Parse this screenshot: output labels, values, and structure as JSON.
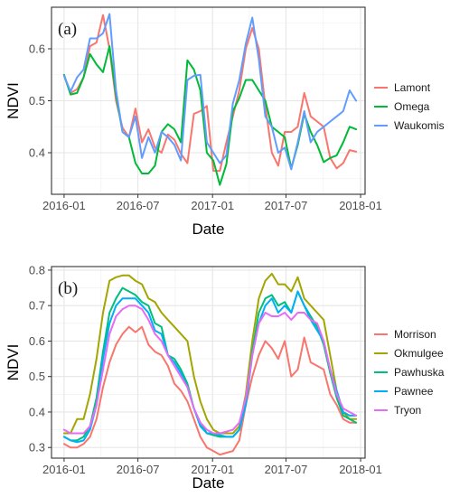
{
  "colors": {
    "panel_border": "#333333",
    "grid_major": "#e6e6e6",
    "grid_minor": "#f2f2f2",
    "background": "#ffffff"
  },
  "chart_data": [
    {
      "type": "line",
      "panel_label": "(a)",
      "xlabel": "Date",
      "ylabel": "NDVI",
      "xlim": [
        "2015-12-01",
        "2018-01-12"
      ],
      "ylim": [
        0.32,
        0.68
      ],
      "grid": true,
      "legend_position": "right",
      "x_ticks": [
        "2016-01",
        "2016-07",
        "2017-01",
        "2017-07",
        "2018-01"
      ],
      "x_tick_dates": [
        "2016-01-01",
        "2016-07-01",
        "2017-01-01",
        "2017-07-01",
        "2018-01-01"
      ],
      "y_ticks": [
        0.4,
        0.5,
        0.6
      ],
      "y_tick_labels": [
        "0.4",
        "0.5",
        "0.6"
      ],
      "x": [
        "2016-01-01",
        "2016-01-17",
        "2016-02-02",
        "2016-02-18",
        "2016-03-05",
        "2016-03-21",
        "2016-04-06",
        "2016-04-22",
        "2016-05-08",
        "2016-05-24",
        "2016-06-09",
        "2016-06-25",
        "2016-07-11",
        "2016-07-27",
        "2016-08-12",
        "2016-08-28",
        "2016-09-13",
        "2016-09-29",
        "2016-10-15",
        "2016-10-31",
        "2016-11-16",
        "2016-12-02",
        "2016-12-18",
        "2017-01-03",
        "2017-01-19",
        "2017-02-04",
        "2017-02-20",
        "2017-03-08",
        "2017-03-24",
        "2017-04-09",
        "2017-04-25",
        "2017-05-11",
        "2017-05-27",
        "2017-06-12",
        "2017-06-28",
        "2017-07-14",
        "2017-07-30",
        "2017-08-15",
        "2017-08-31",
        "2017-09-16",
        "2017-10-02",
        "2017-10-18",
        "2017-11-03",
        "2017-11-19",
        "2017-12-05",
        "2017-12-21"
      ],
      "series": [
        {
          "name": "Lamont",
          "color": "#f8766d",
          "values": [
            0.548,
            0.515,
            0.522,
            0.545,
            0.605,
            0.612,
            0.665,
            0.6,
            0.5,
            0.448,
            0.43,
            0.485,
            0.42,
            0.445,
            0.41,
            0.4,
            0.435,
            0.425,
            0.398,
            0.38,
            0.475,
            0.48,
            0.49,
            0.365,
            0.365,
            0.42,
            0.47,
            0.52,
            0.6,
            0.64,
            0.6,
            0.49,
            0.4,
            0.375,
            0.44,
            0.44,
            0.45,
            0.515,
            0.47,
            0.46,
            0.45,
            0.39,
            0.37,
            0.38,
            0.405,
            0.402
          ]
        },
        {
          "name": "Omega",
          "color": "#00ba38",
          "values": [
            0.55,
            0.512,
            0.515,
            0.545,
            0.59,
            0.57,
            0.555,
            0.605,
            0.51,
            0.44,
            0.43,
            0.38,
            0.36,
            0.36,
            0.375,
            0.44,
            0.455,
            0.445,
            0.42,
            0.578,
            0.56,
            0.52,
            0.4,
            0.385,
            0.338,
            0.378,
            0.48,
            0.505,
            0.54,
            0.54,
            0.52,
            0.5,
            0.45,
            0.44,
            0.43,
            0.37,
            0.415,
            0.475,
            0.44,
            0.415,
            0.382,
            0.39,
            0.395,
            0.42,
            0.45,
            0.445
          ]
        },
        {
          "name": "Waukomis",
          "color": "#619cff",
          "values": [
            0.548,
            0.518,
            0.545,
            0.56,
            0.62,
            0.62,
            0.63,
            0.667,
            0.52,
            0.44,
            0.43,
            0.47,
            0.39,
            0.43,
            0.4,
            0.44,
            0.43,
            0.415,
            0.385,
            0.54,
            0.548,
            0.55,
            0.42,
            0.4,
            0.38,
            0.395,
            0.495,
            0.54,
            0.61,
            0.66,
            0.58,
            0.47,
            0.45,
            0.4,
            0.41,
            0.368,
            0.42,
            0.48,
            0.42,
            0.44,
            0.45,
            0.46,
            0.47,
            0.48,
            0.52,
            0.5
          ]
        }
      ]
    },
    {
      "type": "line",
      "panel_label": "(b)",
      "xlabel": "Date",
      "ylabel": "NDVI",
      "xlim": [
        "2015-12-01",
        "2018-01-12"
      ],
      "ylim": [
        0.27,
        0.81
      ],
      "grid": true,
      "legend_position": "right",
      "x_ticks": [
        "2016-01",
        "2016-07",
        "2017-01",
        "2017-07",
        "2018-01"
      ],
      "x_tick_dates": [
        "2016-01-01",
        "2016-07-01",
        "2017-01-01",
        "2017-07-01",
        "2018-01-01"
      ],
      "y_ticks": [
        0.3,
        0.4,
        0.5,
        0.6,
        0.7,
        0.8
      ],
      "y_tick_labels": [
        "0.3",
        "0.4",
        "0.5",
        "0.6",
        "0.7",
        "0.8"
      ],
      "x": [
        "2016-01-01",
        "2016-01-17",
        "2016-02-02",
        "2016-02-18",
        "2016-03-05",
        "2016-03-21",
        "2016-04-06",
        "2016-04-22",
        "2016-05-08",
        "2016-05-24",
        "2016-06-09",
        "2016-06-25",
        "2016-07-11",
        "2016-07-27",
        "2016-08-12",
        "2016-08-28",
        "2016-09-13",
        "2016-09-29",
        "2016-10-15",
        "2016-10-31",
        "2016-11-16",
        "2016-12-02",
        "2016-12-18",
        "2017-01-03",
        "2017-01-19",
        "2017-02-04",
        "2017-02-20",
        "2017-03-08",
        "2017-03-24",
        "2017-04-09",
        "2017-04-25",
        "2017-05-11",
        "2017-05-27",
        "2017-06-12",
        "2017-06-28",
        "2017-07-14",
        "2017-07-30",
        "2017-08-15",
        "2017-08-31",
        "2017-09-16",
        "2017-10-02",
        "2017-10-18",
        "2017-11-03",
        "2017-11-19",
        "2017-12-05",
        "2017-12-21"
      ],
      "series": [
        {
          "name": "Morrison",
          "color": "#f8766d",
          "values": [
            0.31,
            0.3,
            0.3,
            0.31,
            0.33,
            0.38,
            0.47,
            0.54,
            0.59,
            0.62,
            0.64,
            0.625,
            0.64,
            0.59,
            0.57,
            0.56,
            0.53,
            0.48,
            0.46,
            0.43,
            0.38,
            0.33,
            0.3,
            0.29,
            0.28,
            0.285,
            0.29,
            0.32,
            0.42,
            0.5,
            0.56,
            0.6,
            0.58,
            0.55,
            0.6,
            0.5,
            0.52,
            0.61,
            0.54,
            0.53,
            0.52,
            0.45,
            0.42,
            0.38,
            0.37,
            0.37
          ]
        },
        {
          "name": "Okmulgee",
          "color": "#a3a500",
          "values": [
            0.34,
            0.34,
            0.38,
            0.38,
            0.45,
            0.55,
            0.68,
            0.77,
            0.78,
            0.785,
            0.785,
            0.77,
            0.76,
            0.72,
            0.71,
            0.68,
            0.66,
            0.64,
            0.62,
            0.6,
            0.5,
            0.43,
            0.38,
            0.35,
            0.34,
            0.34,
            0.34,
            0.36,
            0.45,
            0.6,
            0.72,
            0.77,
            0.79,
            0.76,
            0.76,
            0.74,
            0.78,
            0.72,
            0.7,
            0.68,
            0.66,
            0.56,
            0.46,
            0.4,
            0.38,
            0.38
          ]
        },
        {
          "name": "Pawhuska",
          "color": "#00bf7d",
          "values": [
            0.33,
            0.32,
            0.32,
            0.33,
            0.36,
            0.44,
            0.57,
            0.68,
            0.72,
            0.75,
            0.74,
            0.73,
            0.71,
            0.7,
            0.65,
            0.64,
            0.56,
            0.55,
            0.52,
            0.48,
            0.41,
            0.37,
            0.34,
            0.335,
            0.33,
            0.33,
            0.33,
            0.35,
            0.43,
            0.57,
            0.68,
            0.72,
            0.73,
            0.7,
            0.71,
            0.68,
            0.74,
            0.7,
            0.67,
            0.64,
            0.59,
            0.51,
            0.44,
            0.39,
            0.38,
            0.37
          ]
        },
        {
          "name": "Pawnee",
          "color": "#00b0f6",
          "values": [
            0.33,
            0.32,
            0.315,
            0.32,
            0.35,
            0.42,
            0.55,
            0.65,
            0.7,
            0.72,
            0.72,
            0.72,
            0.7,
            0.68,
            0.63,
            0.62,
            0.56,
            0.54,
            0.51,
            0.47,
            0.41,
            0.36,
            0.34,
            0.34,
            0.335,
            0.33,
            0.33,
            0.35,
            0.42,
            0.56,
            0.65,
            0.7,
            0.72,
            0.68,
            0.7,
            0.68,
            0.74,
            0.7,
            0.66,
            0.63,
            0.6,
            0.52,
            0.46,
            0.4,
            0.39,
            0.39
          ]
        },
        {
          "name": "Tryon",
          "color": "#e76bf3",
          "values": [
            0.35,
            0.34,
            0.34,
            0.34,
            0.36,
            0.42,
            0.52,
            0.62,
            0.67,
            0.69,
            0.7,
            0.7,
            0.69,
            0.66,
            0.62,
            0.6,
            0.56,
            0.53,
            0.5,
            0.47,
            0.41,
            0.37,
            0.35,
            0.34,
            0.34,
            0.345,
            0.35,
            0.37,
            0.44,
            0.56,
            0.65,
            0.68,
            0.67,
            0.67,
            0.68,
            0.66,
            0.68,
            0.68,
            0.66,
            0.65,
            0.6,
            0.52,
            0.45,
            0.41,
            0.4,
            0.39
          ]
        }
      ]
    }
  ]
}
